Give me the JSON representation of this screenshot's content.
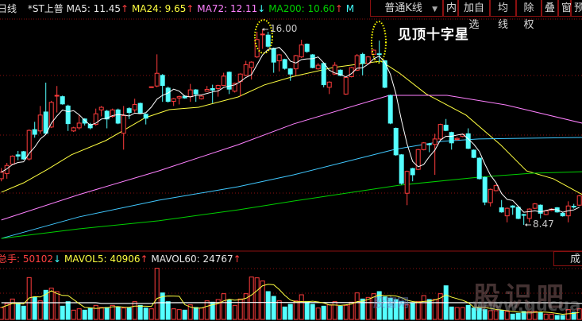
{
  "header": {
    "period": "日线",
    "stock": "*ST上普",
    "ma5": {
      "label": "MA5: 11.45",
      "arrow": "↑"
    },
    "ma24": {
      "label": "MA24: 9.65",
      "arrow": "↑"
    },
    "ma72": {
      "label": "MA72: 12.11",
      "arrow": "↓"
    },
    "ma200": {
      "label": "MA200: 10.60",
      "arrow": "↑"
    },
    "more": "M"
  },
  "toolbar": {
    "kline_type": "普通K线",
    "dropdown_arrow": "▼",
    "buttons": [
      "内",
      "加自选",
      "均线",
      "除权",
      "叠",
      "窗",
      "预"
    ]
  },
  "annotation": "见顶十字星",
  "high_label": "16.00",
  "low_label": "8.47",
  "volume_header": {
    "total": "总手: 50102",
    "total_arrow": "↓",
    "mavol5": "MAVOL5: 40906",
    "mavol5_arrow": "↑",
    "mavol60": "MAVOL60: 24767",
    "mavol60_arrow": "↑",
    "right_button": "成"
  },
  "watermark": {
    "logo": "股识吧",
    "url": "www.gucuan.com",
    "secondary": "股窗网"
  },
  "colors": {
    "up": "#ff3c3c",
    "down": "#54ffff",
    "ma5": "#ffffff",
    "ma24": "#ffff40",
    "ma72": "#ff80ff",
    "ma_blue": "#40c8ff",
    "ma200": "#00d000",
    "grid": "#8b1010",
    "ellipse": "#ffff00"
  },
  "chart_data": {
    "type": "candlestick",
    "price_range": [
      7.9,
      16.2
    ],
    "ohlc_format": [
      "open",
      "close",
      "high",
      "low"
    ],
    "candles": [
      [
        10.25,
        10.5,
        10.66,
        10.15
      ],
      [
        10.45,
        10.76,
        10.86,
        10.25
      ],
      [
        10.81,
        11.12,
        11.15,
        10.78
      ],
      [
        11.17,
        11.12,
        11.32,
        10.96
      ],
      [
        11.29,
        11.01,
        11.32,
        10.98
      ],
      [
        11.01,
        12.11,
        12.15,
        10.95
      ],
      [
        12.14,
        11.96,
        12.44,
        11.83
      ],
      [
        12.09,
        12.7,
        13.05,
        11.98
      ],
      [
        12.82,
        12.0,
        13.95,
        11.98
      ],
      [
        12.24,
        13.19,
        13.25,
        12.2
      ],
      [
        13.43,
        13.46,
        13.82,
        12.8
      ],
      [
        13.41,
        13.13,
        13.45,
        13.1
      ],
      [
        13.05,
        12.37,
        13.1,
        12.09
      ],
      [
        12.09,
        12.21,
        12.25,
        12.05
      ],
      [
        12.21,
        12.39,
        12.7,
        12.14
      ],
      [
        12.55,
        12.39,
        12.58,
        12.3
      ],
      [
        12.34,
        12.21,
        12.4,
        12.15
      ],
      [
        12.34,
        12.75,
        12.95,
        12.29
      ],
      [
        12.9,
        13.0,
        13.05,
        12.65
      ],
      [
        12.85,
        12.55,
        12.9,
        12.19
      ],
      [
        12.65,
        12.9,
        12.95,
        12.6
      ],
      [
        12.9,
        12.39,
        12.95,
        12.35
      ],
      [
        12.0,
        12.68,
        13.05,
        11.37
      ],
      [
        12.95,
        12.8,
        13.0,
        12.55
      ],
      [
        12.9,
        13.11,
        13.33,
        12.8
      ],
      [
        13.15,
        12.78,
        13.18,
        12.75
      ],
      [
        12.73,
        12.58,
        12.76,
        12.34
      ],
      [
        13.77,
        13.79,
        13.8,
        13.76
      ],
      [
        13.82,
        14.31,
        15.04,
        13.77
      ],
      [
        14.23,
        13.84,
        14.28,
        13.21
      ],
      [
        13.74,
        13.23,
        13.8,
        13.18
      ],
      [
        13.23,
        13.33,
        13.36,
        13.05
      ],
      [
        13.36,
        13.41,
        13.45,
        13.11
      ],
      [
        13.43,
        13.36,
        13.46,
        13.33
      ],
      [
        13.41,
        13.67,
        13.9,
        13.21
      ],
      [
        13.67,
        13.51,
        13.7,
        13.21
      ],
      [
        13.33,
        13.43,
        13.46,
        13.3
      ],
      [
        13.62,
        13.69,
        13.82,
        13.6
      ],
      [
        13.72,
        13.66,
        13.87,
        13.16
      ],
      [
        13.72,
        13.84,
        13.87,
        13.41
      ],
      [
        13.84,
        14.2,
        14.33,
        13.82
      ],
      [
        14.35,
        13.7,
        14.38,
        13.51
      ],
      [
        13.62,
        13.92,
        13.95,
        13.57
      ],
      [
        14.0,
        14.28,
        14.31,
        13.41
      ],
      [
        14.23,
        14.64,
        14.79,
        14.2
      ],
      [
        14.53,
        14.74,
        14.77,
        14.07
      ],
      [
        14.94,
        15.61,
        15.91,
        14.9
      ],
      [
        15.8,
        15.82,
        16.0,
        15.25
      ],
      [
        15.78,
        15.35,
        15.91,
        15.3
      ],
      [
        15.27,
        14.74,
        15.3,
        14.33
      ],
      [
        14.79,
        15.02,
        15.05,
        14.38
      ],
      [
        14.84,
        14.5,
        14.87,
        14.45
      ],
      [
        14.48,
        14.28,
        14.51,
        14.02
      ],
      [
        14.48,
        14.99,
        15.02,
        14.23
      ],
      [
        14.94,
        15.4,
        15.6,
        14.9
      ],
      [
        15.43,
        15.15,
        15.46,
        15.1
      ],
      [
        15.02,
        14.53,
        15.05,
        14.5
      ],
      [
        14.48,
        14.62,
        14.7,
        14.45
      ],
      [
        14.69,
        13.87,
        14.72,
        13.77
      ],
      [
        13.77,
        13.97,
        14.0,
        13.51
      ],
      [
        14.28,
        14.62,
        14.74,
        14.25
      ],
      [
        14.43,
        14.23,
        14.46,
        14.2
      ],
      [
        13.51,
        14.15,
        14.18,
        13.48
      ],
      [
        14.18,
        14.53,
        14.56,
        14.15
      ],
      [
        14.43,
        14.99,
        15.05,
        14.4
      ],
      [
        15.04,
        14.69,
        15.1,
        14.23
      ],
      [
        14.69,
        14.94,
        14.97,
        14.66
      ],
      [
        15.04,
        15.2,
        15.23,
        15.01
      ],
      [
        15.06,
        15.04,
        15.57,
        14.74
      ],
      [
        14.79,
        13.77,
        14.82,
        13.74
      ],
      [
        13.46,
        12.39,
        13.49,
        12.35
      ],
      [
        12.19,
        11.17,
        12.22,
        11.13
      ],
      [
        11.17,
        10.07,
        11.2,
        10.02
      ],
      [
        9.69,
        10.53,
        10.56,
        9.23
      ],
      [
        10.64,
        10.4,
        10.67,
        10.15
      ],
      [
        10.61,
        11.37,
        11.4,
        10.58
      ],
      [
        11.37,
        11.63,
        11.66,
        11.34
      ],
      [
        11.59,
        11.57,
        11.63,
        11.27
      ],
      [
        11.57,
        11.78,
        11.98,
        10.4
      ],
      [
        11.78,
        12.34,
        12.37,
        11.75
      ],
      [
        12.31,
        12.11,
        12.55,
        12.08
      ],
      [
        12.03,
        11.63,
        12.06,
        11.37
      ],
      [
        11.76,
        11.8,
        11.85,
        11.72
      ],
      [
        11.88,
        11.96,
        11.99,
        11.85
      ],
      [
        11.98,
        11.42,
        12.19,
        11.39
      ],
      [
        11.35,
        11.07,
        11.38,
        11.04
      ],
      [
        11.04,
        10.25,
        11.07,
        10.22
      ],
      [
        10.3,
        9.35,
        10.33,
        9.23
      ],
      [
        9.33,
        9.84,
        9.87,
        9.18
      ],
      [
        9.79,
        9.99,
        10.02,
        9.76
      ],
      [
        9.13,
        8.97,
        9.43,
        8.94
      ],
      [
        8.82,
        9.11,
        9.14,
        8.57
      ],
      [
        9.2,
        9.15,
        9.23,
        8.86
      ],
      [
        9.15,
        8.72,
        9.18,
        8.69
      ],
      [
        8.87,
        8.85,
        8.9,
        8.47
      ],
      [
        8.72,
        9.08,
        9.11,
        8.57
      ],
      [
        9.11,
        9.28,
        9.31,
        9.08
      ],
      [
        9.23,
        8.92,
        9.26,
        8.72
      ],
      [
        8.87,
        9.01,
        9.04,
        8.84
      ],
      [
        9.03,
        9.08,
        9.11,
        9.0
      ],
      [
        9.13,
        8.97,
        9.16,
        8.94
      ],
      [
        8.92,
        8.82,
        8.95,
        8.79
      ],
      [
        8.82,
        9.2,
        9.38,
        8.57
      ],
      [
        9.19,
        9.17,
        9.28,
        9.1
      ],
      [
        9.23,
        9.59,
        9.62,
        9.2
      ]
    ],
    "ma_lines": [
      {
        "name": "MA24",
        "color_key": "ma24",
        "points": [
          [
            0,
            9.73
          ],
          [
            4,
            10.09
          ],
          [
            8.3,
            10.61
          ],
          [
            12.6,
            11.17
          ],
          [
            18.8,
            11.72
          ],
          [
            22.2,
            12.14
          ],
          [
            25.9,
            12.6
          ],
          [
            30.2,
            12.91
          ],
          [
            35.5,
            13.0
          ],
          [
            42.6,
            13.4
          ],
          [
            47.3,
            13.86
          ],
          [
            52.6,
            14.19
          ],
          [
            59.7,
            14.53
          ],
          [
            68.3,
            14.78
          ],
          [
            71.6,
            14.32
          ],
          [
            76.4,
            13.52
          ],
          [
            83.6,
            12.7
          ],
          [
            89.8,
            11.56
          ],
          [
            94.5,
            10.55
          ],
          [
            99.3,
            10.25
          ],
          [
            104.5,
            9.64
          ]
        ]
      },
      {
        "name": "MA72",
        "color_key": "ma72",
        "points": [
          [
            0,
            8.66
          ],
          [
            14,
            9.64
          ],
          [
            28.3,
            10.55
          ],
          [
            42.6,
            11.56
          ],
          [
            52.6,
            12.36
          ],
          [
            69.8,
            13.46
          ],
          [
            80.2,
            13.46
          ],
          [
            90.8,
            13.09
          ],
          [
            104.5,
            12.39
          ]
        ]
      },
      {
        "color_key": "ma_blue",
        "points": [
          [
            0,
            7.95
          ],
          [
            14,
            8.78
          ],
          [
            28.3,
            9.42
          ],
          [
            42.6,
            9.94
          ],
          [
            52.6,
            10.4
          ],
          [
            70.8,
            11.38
          ],
          [
            79.3,
            11.69
          ],
          [
            85.9,
            11.78
          ],
          [
            104.5,
            11.84
          ]
        ]
      },
      {
        "name": "MA200",
        "color_key": "ma200",
        "points": [
          [
            0,
            7.95
          ],
          [
            14,
            8.32
          ],
          [
            28.3,
            8.63
          ],
          [
            42.6,
            9.05
          ],
          [
            52.6,
            9.39
          ],
          [
            71.6,
            10.0
          ],
          [
            85.9,
            10.31
          ],
          [
            95.5,
            10.46
          ],
          [
            104.5,
            10.52
          ]
        ]
      }
    ],
    "volumes": [
      17100,
      22800,
      29260,
      22800,
      19000,
      60040,
      32300,
      26600,
      41800,
      44840,
      39900,
      19000,
      25460,
      13300,
      15200,
      13300,
      16340,
      20140,
      17100,
      17100,
      20140,
      17100,
      16340,
      16340,
      25460,
      20140,
      16340,
      15200,
      73340,
      38000,
      25460,
      15200,
      14060,
      13300,
      20900,
      17100,
      16340,
      26600,
      24700,
      28500,
      36860,
      27740,
      20140,
      29260,
      36860,
      60800,
      59660,
      55100,
      39900,
      33060,
      26600,
      17860,
      21660,
      26600,
      35340,
      25460,
      21660,
      16340,
      19000,
      20900,
      25460,
      19000,
      20140,
      24700,
      38000,
      29260,
      31540,
      36860,
      39900,
      32300,
      30400,
      28500,
      25460,
      20900,
      22800,
      25460,
      34200,
      28500,
      28500,
      36860,
      48260,
      17860,
      17100,
      17100,
      20140,
      16340,
      16340,
      14060,
      12540,
      12540,
      12540,
      11400,
      7600,
      8740,
      11400,
      11400,
      11400,
      10260,
      7600,
      7600,
      5700,
      5700,
      14060,
      10260,
      15200
    ],
    "mavol60_points": [
      [
        0,
        23900
      ],
      [
        17,
        23900
      ],
      [
        18,
        23000
      ],
      [
        27,
        23000
      ],
      [
        28,
        23900
      ],
      [
        45,
        24300
      ],
      [
        100,
        23900
      ],
      [
        104.5,
        23000
      ]
    ]
  }
}
